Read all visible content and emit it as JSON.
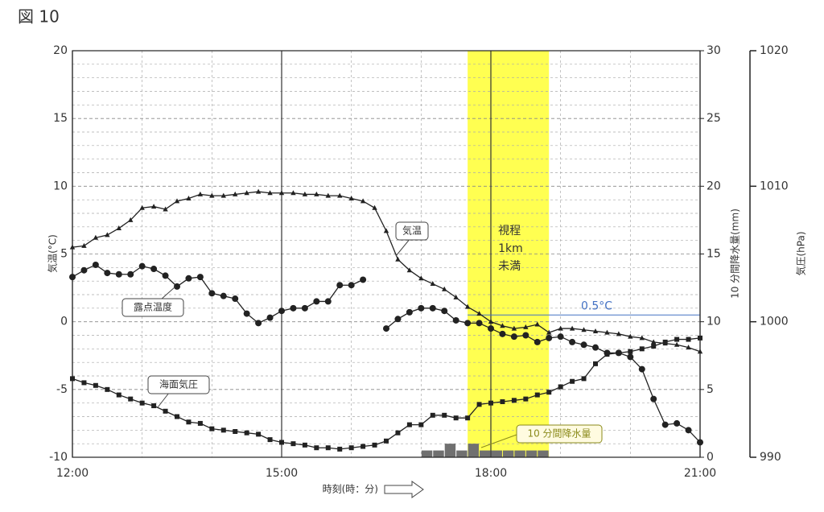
{
  "chart_data": {
    "type": "line",
    "title": "図 10",
    "xlabel": "時刻(時：分)",
    "ylabel": "気温(°C)",
    "y2label": "10 分間降水量(mm)",
    "y3label": "気圧(hPa)",
    "x": [
      "12:00",
      "12:10",
      "12:20",
      "12:30",
      "12:40",
      "12:50",
      "13:00",
      "13:10",
      "13:20",
      "13:30",
      "13:40",
      "13:50",
      "14:00",
      "14:10",
      "14:20",
      "14:30",
      "14:40",
      "14:50",
      "15:00",
      "15:10",
      "15:20",
      "15:30",
      "15:40",
      "15:50",
      "16:00",
      "16:10",
      "16:20",
      "16:30",
      "16:40",
      "16:50",
      "17:00",
      "17:10",
      "17:20",
      "17:30",
      "17:40",
      "17:50",
      "18:00",
      "18:10",
      "18:20",
      "18:30",
      "18:40",
      "18:50",
      "19:00",
      "19:10",
      "19:20",
      "19:30",
      "19:40",
      "19:50",
      "20:00",
      "20:10",
      "20:20",
      "20:30",
      "20:40",
      "20:50",
      "21:00"
    ],
    "xticks": [
      "12:00",
      "15:00",
      "18:00",
      "21:00"
    ],
    "ylim": [
      -10,
      20
    ],
    "yticks": [
      -10,
      -5,
      0,
      5,
      10,
      15,
      20
    ],
    "y2lim": [
      0,
      30
    ],
    "y2ticks": [
      0,
      5,
      10,
      15,
      20,
      25,
      30
    ],
    "y3lim": [
      990,
      1020
    ],
    "y3ticks": [
      990,
      1000,
      1010,
      1020
    ],
    "grid": true,
    "series": [
      {
        "name": "気温",
        "color": "#222222",
        "marker": "triangle",
        "values": [
          5.5,
          5.6,
          6.2,
          6.4,
          6.9,
          7.5,
          8.4,
          8.5,
          8.3,
          8.9,
          9.1,
          9.4,
          9.3,
          9.3,
          9.4,
          9.5,
          9.6,
          9.5,
          9.5,
          9.5,
          9.4,
          9.4,
          9.3,
          9.3,
          9.1,
          8.9,
          8.4,
          6.7,
          4.6,
          3.8,
          3.2,
          2.8,
          2.4,
          1.8,
          1.1,
          0.6,
          0.0,
          -0.3,
          -0.5,
          -0.4,
          -0.2,
          -0.8,
          -0.5,
          -0.5,
          -0.6,
          -0.7,
          -0.8,
          -0.9,
          -1.1,
          -1.2,
          -1.5,
          -1.6,
          -1.7,
          -1.9,
          -2.2
        ]
      },
      {
        "name": "露点温度",
        "color": "#222222",
        "marker": "circle",
        "values": [
          3.3,
          3.8,
          4.2,
          3.6,
          3.5,
          3.5,
          4.1,
          3.9,
          3.4,
          2.6,
          3.2,
          3.3,
          2.1,
          1.9,
          1.7,
          0.6,
          -0.1,
          0.3,
          0.8,
          1.0,
          1.0,
          1.5,
          1.5,
          2.7,
          2.7,
          3.1,
          null,
          -0.5,
          0.2,
          0.7,
          1.0,
          1.0,
          0.8,
          0.1,
          -0.1,
          -0.1,
          -0.5,
          -0.9,
          -1.1,
          -1.0,
          -1.5,
          -1.2,
          -1.1,
          -1.5,
          -1.7,
          -1.9,
          -2.3,
          -2.3,
          -2.6,
          -3.5,
          -5.7,
          -7.6,
          -7.5,
          -8.0,
          -8.9
        ]
      },
      {
        "name": "海面気圧",
        "color": "#222222",
        "marker": "square",
        "axis": "y3",
        "values": [
          995.8,
          995.5,
          995.3,
          995.0,
          994.6,
          994.3,
          994.0,
          993.8,
          993.4,
          993.0,
          992.6,
          992.5,
          992.1,
          992.0,
          991.9,
          991.8,
          991.7,
          991.3,
          991.1,
          991.0,
          990.9,
          990.7,
          990.7,
          990.6,
          990.7,
          990.8,
          990.9,
          991.2,
          991.8,
          992.4,
          992.4,
          993.1,
          993.1,
          992.9,
          992.9,
          993.9,
          994.0,
          994.1,
          994.2,
          994.3,
          994.6,
          994.8,
          995.2,
          995.6,
          995.8,
          996.9,
          997.6,
          997.7,
          997.8,
          998.0,
          998.2,
          998.5,
          998.7,
          998.7,
          998.8
        ]
      },
      {
        "name": "10 分間降水量",
        "color": "#707070",
        "type": "bar",
        "axis": "y2",
        "label_color": "#8a8a1a",
        "values": [
          0,
          0,
          0,
          0,
          0,
          0,
          0,
          0,
          0,
          0,
          0,
          0,
          0,
          0,
          0,
          0,
          0,
          0,
          0,
          0,
          0,
          0,
          0,
          0,
          0,
          0,
          0,
          0,
          0,
          0,
          0,
          0.5,
          0.5,
          1.0,
          0.5,
          1.0,
          0.5,
          0.5,
          0.5,
          0.5,
          0.5,
          0.5,
          0,
          0,
          0,
          0,
          0,
          0,
          0,
          0,
          0,
          0,
          0,
          0,
          0
        ]
      }
    ],
    "highlight": {
      "from": "17:40",
      "to": "18:50",
      "color": "#ffff33",
      "label": [
        "視程",
        "1km",
        "未満"
      ]
    },
    "reference_line": {
      "value": 0.5,
      "label": "0.5°C",
      "color": "#4472c4"
    }
  }
}
